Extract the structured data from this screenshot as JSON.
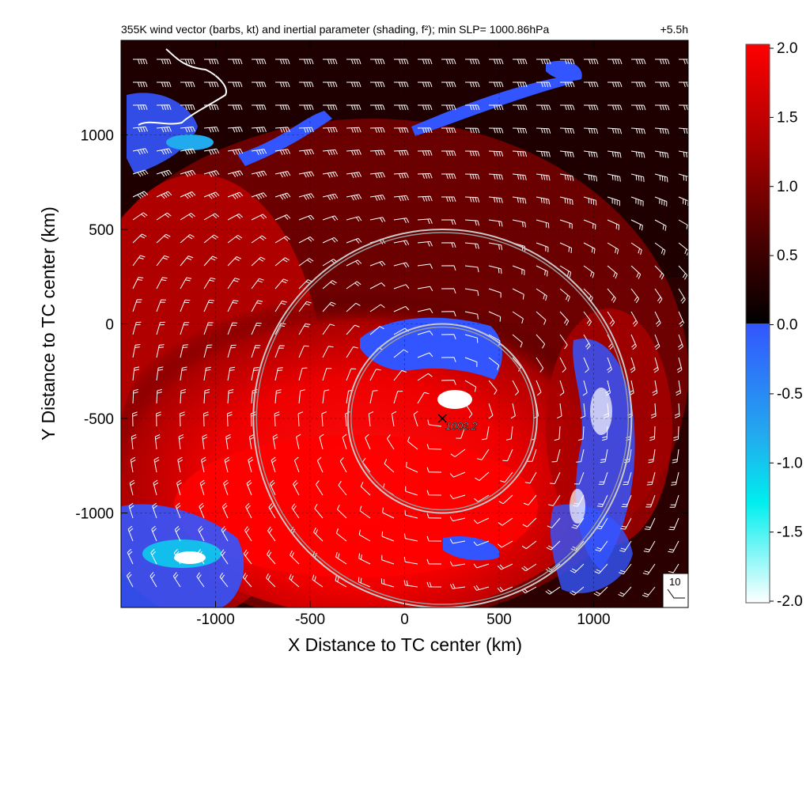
{
  "chart_data": {
    "type": "heatmap",
    "title": "355K wind vector (barbs, kt) and inertial parameter (shading, f²); min SLP= 1000.86hPa",
    "title_right": "+5.5h",
    "xlabel": "X Distance to TC center (km)",
    "ylabel": "Y Distance to TC center (km)",
    "xlim": [
      -1500,
      1500
    ],
    "ylim": [
      -1500,
      1500
    ],
    "xticks": [
      -1000,
      -500,
      0,
      500,
      1000
    ],
    "yticks": [
      1000,
      500,
      0,
      -500,
      -1000
    ],
    "xtick_labels": [
      "-1000",
      "-500",
      "0",
      "500",
      "1000"
    ],
    "ytick_labels": [
      "1000",
      "500",
      "0",
      "-500",
      "-1000"
    ],
    "grid": true,
    "colorbar": {
      "range": [
        -2.0,
        2.0
      ],
      "ticks": [
        2.0,
        1.5,
        1.0,
        0.5,
        0.0,
        -0.5,
        -1.0,
        -1.5,
        -2.0
      ],
      "tick_labels": [
        "2.0",
        "1.5",
        "1.0",
        "0.5",
        "0.0",
        "-0.5",
        "-1.0",
        "-1.5",
        "-2.0"
      ],
      "colors_positive": [
        "#000000",
        "#4a0000",
        "#aa0000",
        "#ff0000"
      ],
      "colors_negative": [
        "#3355ff",
        "#22aaee",
        "#00eeee",
        "#ffffff"
      ]
    },
    "center_marker": {
      "label": "1002.2",
      "x": 200,
      "y": -500
    },
    "range_rings": [
      {
        "center_x": 200,
        "center_y": -500,
        "radius_km": 500
      },
      {
        "center_x": 200,
        "center_y": -500,
        "radius_km": 1000
      }
    ],
    "barb_reference": {
      "label": "10",
      "units": "kt"
    }
  }
}
